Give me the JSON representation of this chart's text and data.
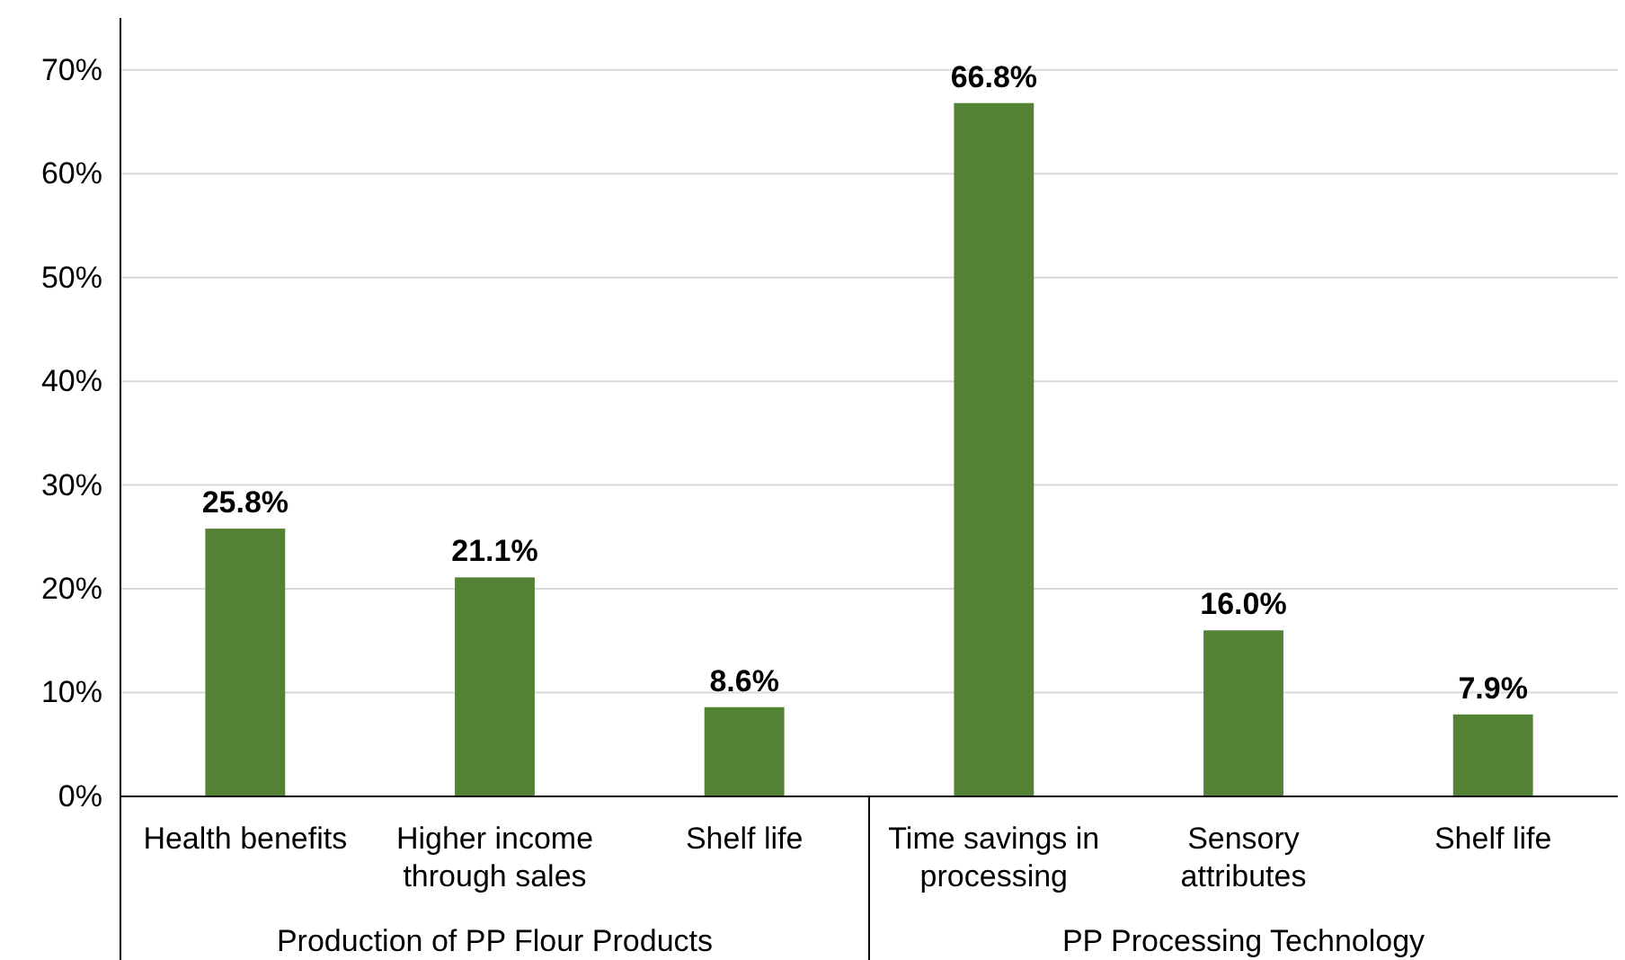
{
  "chart_data": {
    "type": "bar",
    "categories": [
      "Health benefits",
      "Higher income through sales",
      "Shelf life",
      "Time savings in processing",
      "Sensory attributes",
      "Shelf life"
    ],
    "values": [
      25.8,
      21.1,
      8.6,
      66.8,
      16.0,
      7.9
    ],
    "color": "#548235",
    "ylim": [
      0,
      75
    ],
    "yticks": [
      {
        "value": 0,
        "label": "0%"
      },
      {
        "value": 10,
        "label": "10%"
      },
      {
        "value": 20,
        "label": "20%"
      },
      {
        "value": 30,
        "label": "30%"
      },
      {
        "value": 40,
        "label": "40%"
      },
      {
        "value": 50,
        "label": "50%"
      },
      {
        "value": 60,
        "label": "60%"
      },
      {
        "value": 70,
        "label": "70%"
      }
    ],
    "grid": "y",
    "data_labels": true,
    "value_labels": [
      "25.8%",
      "21.1%",
      "8.6%",
      "66.8%",
      "16.0%",
      "7.9%"
    ],
    "annotations": [
      "Production of PP Flour Products",
      "PP Processing Technology"
    ]
  }
}
